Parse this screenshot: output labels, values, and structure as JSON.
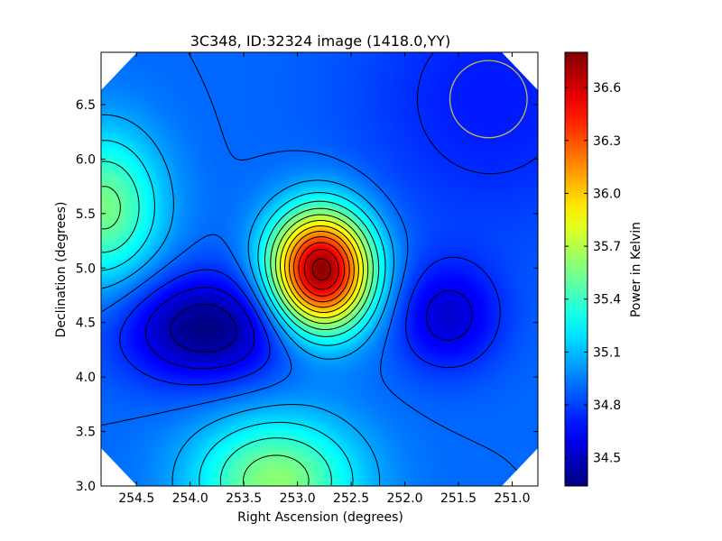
{
  "chart_data": {
    "type": "heatmap",
    "title": "3C348, ID:32324 image (1418.0,YY)",
    "xlabel": "Right Ascension (degrees)",
    "ylabel": "Declination (degrees)",
    "xlim": [
      254.83,
      250.76
    ],
    "ylim": [
      3.0,
      6.98
    ],
    "x_ticks": [
      254.5,
      254.0,
      253.5,
      253.0,
      252.5,
      252.0,
      251.5,
      251.0
    ],
    "x_tick_labels": [
      "254.5",
      "254.0",
      "253.5",
      "253.0",
      "252.5",
      "252.0",
      "251.5",
      "251.0"
    ],
    "y_ticks": [
      3.0,
      3.5,
      4.0,
      4.5,
      5.0,
      5.5,
      6.0,
      6.5
    ],
    "y_tick_labels": [
      "3.0",
      "3.5",
      "4.0",
      "4.5",
      "5.0",
      "5.5",
      "6.0",
      "6.5"
    ],
    "colorbar": {
      "label": "Power in Kelvin",
      "range": [
        34.34,
        36.8
      ],
      "ticks": [
        34.5,
        34.8,
        35.1,
        35.4,
        35.7,
        36.0,
        36.3,
        36.6
      ],
      "tick_labels": [
        "34.5",
        "34.8",
        "35.1",
        "35.4",
        "35.7",
        "36.0",
        "36.3",
        "36.6"
      ],
      "colormap": "jet"
    },
    "background_level": 34.9,
    "features": [
      {
        "kind": "peak",
        "ra": 252.78,
        "dec": 4.98,
        "value": 36.8
      },
      {
        "kind": "peak",
        "ra": 254.8,
        "dec": 5.55,
        "value": 35.55
      },
      {
        "kind": "peak",
        "ra": 253.2,
        "dec": 3.05,
        "value": 35.6
      },
      {
        "kind": "trough",
        "ra": 253.85,
        "dec": 4.45,
        "value": 34.34
      },
      {
        "kind": "trough",
        "ra": 251.6,
        "dec": 4.55,
        "value": 34.55
      },
      {
        "kind": "trough",
        "ra": 251.2,
        "dec": 6.55,
        "value": 34.7
      }
    ],
    "beam_circle": {
      "ra": 251.22,
      "dec": 6.55,
      "color": "#c8b850"
    },
    "contour_color": "#000000",
    "grid": false
  }
}
